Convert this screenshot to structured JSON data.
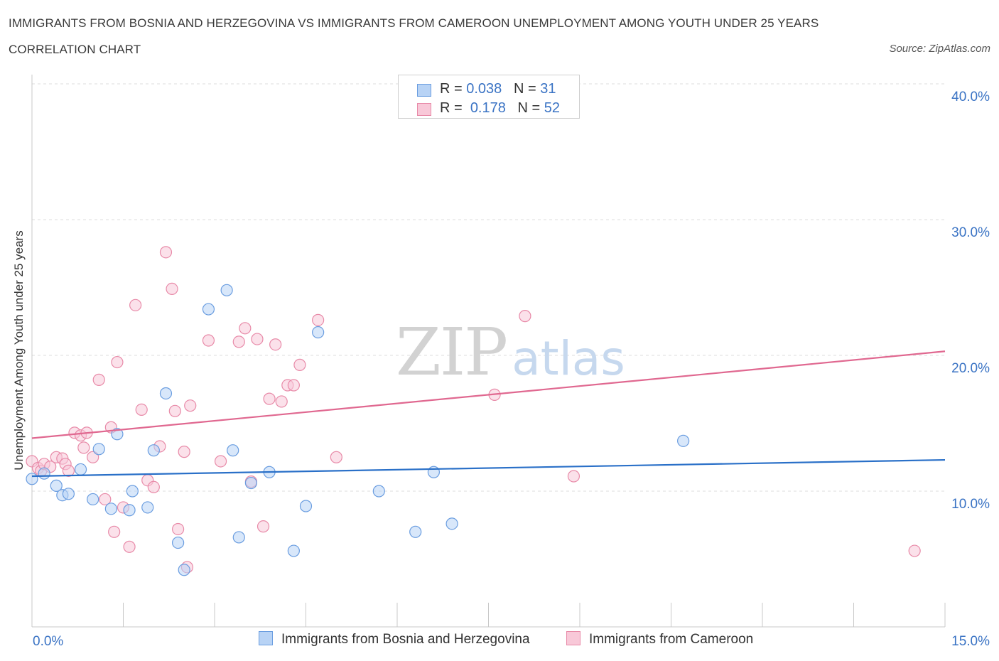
{
  "title": "IMMIGRANTS FROM BOSNIA AND HERZEGOVINA VS IMMIGRANTS FROM CAMEROON UNEMPLOYMENT AMONG YOUTH UNDER 25 YEARS CORRELATION CHART",
  "source": "Source: ZipAtlas.com",
  "watermark": {
    "zip": "ZIP",
    "atlas": "atlas"
  },
  "legend": {
    "series1": {
      "r_label": "R =",
      "r_value": "0.038",
      "n_label": "N =",
      "n_value": "31"
    },
    "series2": {
      "r_label": "R =",
      "r_value": "0.178",
      "n_label": "N =",
      "n_value": "52"
    }
  },
  "chart_data": {
    "type": "scatter",
    "xlabel": "",
    "ylabel": "Unemployment Among Youth under 25 years",
    "xlim": [
      0,
      15
    ],
    "ylim": [
      0,
      40
    ],
    "x_tick_labels": [
      "0.0%",
      "15.0%"
    ],
    "y_tick_labels": [
      "10.0%",
      "20.0%",
      "30.0%",
      "40.0%"
    ],
    "y_ticks": [
      10,
      20,
      30,
      40
    ],
    "grid": true,
    "colors": {
      "series1": "#6a9de0",
      "series2": "#e88aa8",
      "trend1": "#2a70c8",
      "trend2": "#e06890",
      "fill1": "#b8d3f5",
      "fill2": "#f8c8d8"
    },
    "series": [
      {
        "name": "Immigrants from Bosnia and Herzegovina",
        "r": 0.038,
        "n": 31,
        "trend": [
          [
            0,
            11.1
          ],
          [
            15,
            12.3
          ]
        ],
        "points": [
          [
            0.0,
            10.9
          ],
          [
            0.2,
            11.3
          ],
          [
            0.4,
            10.4
          ],
          [
            0.5,
            9.7
          ],
          [
            0.6,
            9.8
          ],
          [
            0.8,
            11.6
          ],
          [
            1.0,
            9.4
          ],
          [
            1.1,
            13.1
          ],
          [
            1.3,
            8.7
          ],
          [
            1.4,
            14.2
          ],
          [
            1.6,
            8.6
          ],
          [
            1.65,
            10.0
          ],
          [
            1.9,
            8.8
          ],
          [
            2.0,
            13.0
          ],
          [
            2.2,
            17.2
          ],
          [
            2.4,
            6.2
          ],
          [
            2.5,
            4.2
          ],
          [
            2.9,
            23.4
          ],
          [
            3.2,
            24.8
          ],
          [
            3.3,
            13.0
          ],
          [
            3.4,
            6.6
          ],
          [
            3.6,
            10.6
          ],
          [
            3.9,
            11.4
          ],
          [
            4.3,
            5.6
          ],
          [
            4.5,
            8.9
          ],
          [
            4.7,
            21.7
          ],
          [
            5.7,
            10.0
          ],
          [
            6.3,
            7.0
          ],
          [
            6.6,
            11.4
          ],
          [
            6.9,
            7.6
          ],
          [
            10.7,
            13.7
          ]
        ]
      },
      {
        "name": "Immigrants from Cameroon",
        "r": 0.178,
        "n": 52,
        "trend": [
          [
            0,
            13.9
          ],
          [
            15,
            20.3
          ]
        ],
        "points": [
          [
            0.0,
            12.2
          ],
          [
            0.1,
            11.7
          ],
          [
            0.15,
            11.5
          ],
          [
            0.2,
            12.0
          ],
          [
            0.3,
            11.8
          ],
          [
            0.4,
            12.5
          ],
          [
            0.5,
            12.4
          ],
          [
            0.55,
            12.0
          ],
          [
            0.6,
            11.5
          ],
          [
            0.7,
            14.3
          ],
          [
            0.8,
            14.1
          ],
          [
            0.85,
            13.2
          ],
          [
            0.9,
            14.3
          ],
          [
            1.0,
            12.5
          ],
          [
            1.1,
            18.2
          ],
          [
            1.2,
            9.4
          ],
          [
            1.3,
            14.7
          ],
          [
            1.35,
            7.0
          ],
          [
            1.4,
            19.5
          ],
          [
            1.5,
            8.8
          ],
          [
            1.6,
            5.9
          ],
          [
            1.7,
            23.7
          ],
          [
            1.8,
            16.0
          ],
          [
            1.9,
            10.8
          ],
          [
            2.0,
            10.3
          ],
          [
            2.1,
            13.3
          ],
          [
            2.2,
            27.6
          ],
          [
            2.3,
            24.9
          ],
          [
            2.35,
            15.9
          ],
          [
            2.4,
            7.2
          ],
          [
            2.5,
            12.9
          ],
          [
            2.55,
            4.4
          ],
          [
            2.6,
            16.3
          ],
          [
            2.9,
            21.1
          ],
          [
            3.1,
            12.2
          ],
          [
            3.4,
            21.0
          ],
          [
            3.5,
            22.0
          ],
          [
            3.6,
            10.7
          ],
          [
            3.7,
            21.2
          ],
          [
            3.8,
            7.4
          ],
          [
            3.9,
            16.8
          ],
          [
            4.0,
            20.8
          ],
          [
            4.1,
            16.6
          ],
          [
            4.2,
            17.8
          ],
          [
            4.3,
            17.8
          ],
          [
            4.4,
            19.3
          ],
          [
            4.7,
            22.6
          ],
          [
            5.0,
            12.5
          ],
          [
            7.6,
            17.1
          ],
          [
            8.1,
            22.9
          ],
          [
            8.9,
            11.1
          ],
          [
            14.5,
            5.6
          ]
        ]
      }
    ]
  }
}
